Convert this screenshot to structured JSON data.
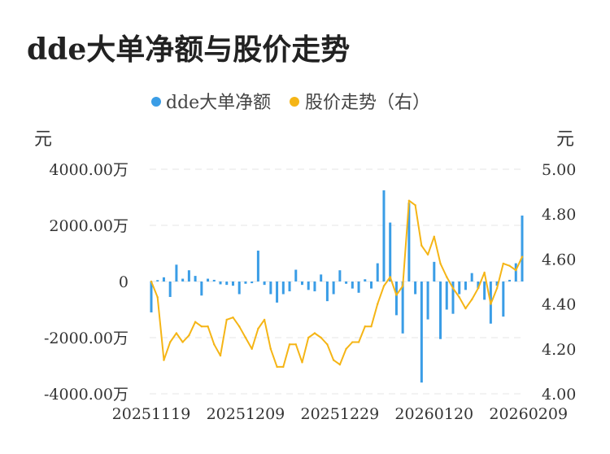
{
  "title": "dde大单净额与股价走势",
  "chart_data": {
    "type": "bar+line",
    "title": "dde大单净额与股价走势",
    "legend": {
      "placement": "top-center",
      "items": [
        {
          "name": "dde大单净额",
          "color": "#3a9de6"
        },
        {
          "name": "股价走势（右）",
          "color": "#f5b516"
        }
      ]
    },
    "y_left": {
      "unit": "元",
      "range": [
        -4000,
        4000
      ],
      "ticks": [
        4000,
        2000,
        0,
        -2000,
        -4000
      ],
      "tick_labels": [
        "4000.00万",
        "2000.00万",
        "0",
        "-2000.00万",
        "-4000.00万"
      ]
    },
    "y_right": {
      "unit": "元",
      "range": [
        4.0,
        5.0
      ],
      "ticks": [
        5.0,
        4.8,
        4.6,
        4.4,
        4.2,
        4.0
      ],
      "tick_labels": [
        "5.00",
        "4.80",
        "4.60",
        "4.40",
        "4.20",
        "4.00"
      ]
    },
    "x_tick_labels": [
      {
        "index": 0,
        "label": "20251119"
      },
      {
        "index": 15,
        "label": "20251209"
      },
      {
        "index": 30,
        "label": "20251229"
      },
      {
        "index": 45,
        "label": "20260120"
      },
      {
        "index": 60,
        "label": "20260209"
      }
    ],
    "grid": true,
    "series": [
      {
        "name": "dde大单净额",
        "kind": "bar",
        "axis": "left",
        "color": "#3a9de6",
        "values": [
          -1100,
          50,
          150,
          -550,
          600,
          100,
          400,
          200,
          -500,
          100,
          60,
          -100,
          -120,
          -150,
          -450,
          -80,
          -60,
          1100,
          -120,
          -450,
          -750,
          -450,
          -350,
          420,
          -120,
          -300,
          -350,
          250,
          -700,
          -450,
          400,
          -80,
          -250,
          -400,
          80,
          -250,
          650,
          3250,
          2100,
          -1200,
          -1850,
          2800,
          -450,
          -3600,
          -1350,
          700,
          -2050,
          -1000,
          -1150,
          -450,
          -300,
          300,
          -250,
          -650,
          -1500,
          -150,
          -1250,
          60,
          650,
          2350
        ]
      },
      {
        "name": "股价走势（右）",
        "kind": "line",
        "axis": "right",
        "color": "#f5b516",
        "values": [
          4.5,
          4.43,
          4.15,
          4.23,
          4.27,
          4.23,
          4.26,
          4.32,
          4.3,
          4.3,
          4.22,
          4.17,
          4.33,
          4.34,
          4.3,
          4.25,
          4.2,
          4.29,
          4.33,
          4.2,
          4.12,
          4.12,
          4.22,
          4.22,
          4.14,
          4.25,
          4.27,
          4.25,
          4.22,
          4.15,
          4.13,
          4.2,
          4.23,
          4.23,
          4.3,
          4.3,
          4.4,
          4.48,
          4.52,
          4.44,
          4.48,
          4.86,
          4.84,
          4.66,
          4.62,
          4.7,
          4.58,
          4.52,
          4.47,
          4.43,
          4.38,
          4.42,
          4.47,
          4.54,
          4.4,
          4.47,
          4.58,
          4.57,
          4.55,
          4.61
        ]
      }
    ]
  }
}
